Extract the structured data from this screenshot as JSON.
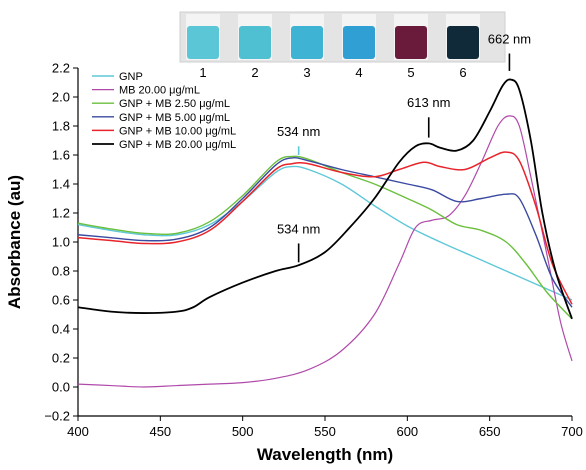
{
  "chart_data": {
    "type": "line",
    "xlabel": "Wavelength (nm)",
    "ylabel": "Absorbance (au)",
    "xlim": [
      400,
      700
    ],
    "ylim": [
      -0.2,
      2.2
    ],
    "x_ticks": [
      400,
      450,
      500,
      550,
      600,
      650,
      700
    ],
    "x_tick_labels": [
      "400",
      "450",
      "500",
      "550",
      "600",
      "650",
      "700"
    ],
    "y_ticks": [
      -0.2,
      0.0,
      0.2,
      0.4,
      0.6,
      0.8,
      1.0,
      1.2,
      1.4,
      1.6,
      1.8,
      2.0,
      2.2
    ],
    "y_tick_labels": [
      "−0.2",
      "0.0",
      "0.2",
      "0.4",
      "0.6",
      "0.8",
      "1.0",
      "1.2",
      "1.4",
      "1.6",
      "1.8",
      "2.0",
      "2.2"
    ],
    "grid": false,
    "legend_position": "top-left",
    "series": [
      {
        "name": "GNP",
        "color": "#5ec8d8",
        "width": 1.4,
        "points": [
          [
            400,
            1.12
          ],
          [
            420,
            1.08
          ],
          [
            440,
            1.05
          ],
          [
            460,
            1.05
          ],
          [
            480,
            1.12
          ],
          [
            500,
            1.28
          ],
          [
            520,
            1.48
          ],
          [
            530,
            1.52
          ],
          [
            540,
            1.5
          ],
          [
            560,
            1.4
          ],
          [
            580,
            1.25
          ],
          [
            600,
            1.11
          ],
          [
            620,
            1.0
          ],
          [
            640,
            0.9
          ],
          [
            660,
            0.8
          ],
          [
            680,
            0.7
          ],
          [
            700,
            0.6
          ]
        ]
      },
      {
        "name": "MB 20.00 μg/mL",
        "color": "#b04aaa",
        "width": 1.2,
        "points": [
          [
            400,
            0.02
          ],
          [
            420,
            0.01
          ],
          [
            440,
            0.0
          ],
          [
            460,
            0.01
          ],
          [
            480,
            0.02
          ],
          [
            500,
            0.03
          ],
          [
            520,
            0.06
          ],
          [
            540,
            0.12
          ],
          [
            560,
            0.25
          ],
          [
            580,
            0.5
          ],
          [
            595,
            0.85
          ],
          [
            605,
            1.1
          ],
          [
            615,
            1.15
          ],
          [
            625,
            1.18
          ],
          [
            635,
            1.32
          ],
          [
            645,
            1.55
          ],
          [
            655,
            1.8
          ],
          [
            662,
            1.87
          ],
          [
            668,
            1.8
          ],
          [
            675,
            1.45
          ],
          [
            685,
            0.9
          ],
          [
            693,
            0.45
          ],
          [
            700,
            0.18
          ]
        ]
      },
      {
        "name": "GNP + MB 2.50 μg/mL",
        "color": "#6abf3c",
        "width": 1.4,
        "points": [
          [
            400,
            1.13
          ],
          [
            420,
            1.09
          ],
          [
            440,
            1.06
          ],
          [
            460,
            1.06
          ],
          [
            480,
            1.14
          ],
          [
            500,
            1.32
          ],
          [
            520,
            1.55
          ],
          [
            530,
            1.59
          ],
          [
            540,
            1.57
          ],
          [
            560,
            1.48
          ],
          [
            580,
            1.4
          ],
          [
            600,
            1.3
          ],
          [
            615,
            1.22
          ],
          [
            630,
            1.12
          ],
          [
            645,
            1.08
          ],
          [
            660,
            1.0
          ],
          [
            672,
            0.85
          ],
          [
            685,
            0.65
          ],
          [
            700,
            0.47
          ]
        ]
      },
      {
        "name": "GNP + MB 5.00 μg/mL",
        "color": "#3a4aa0",
        "width": 1.4,
        "points": [
          [
            400,
            1.05
          ],
          [
            420,
            1.03
          ],
          [
            440,
            1.01
          ],
          [
            460,
            1.02
          ],
          [
            480,
            1.1
          ],
          [
            500,
            1.3
          ],
          [
            520,
            1.53
          ],
          [
            530,
            1.58
          ],
          [
            540,
            1.56
          ],
          [
            560,
            1.5
          ],
          [
            580,
            1.45
          ],
          [
            600,
            1.4
          ],
          [
            615,
            1.36
          ],
          [
            630,
            1.28
          ],
          [
            645,
            1.3
          ],
          [
            660,
            1.33
          ],
          [
            668,
            1.3
          ],
          [
            678,
            1.05
          ],
          [
            688,
            0.75
          ],
          [
            700,
            0.55
          ]
        ]
      },
      {
        "name": "GNP + MB 10.00 μg/mL",
        "color": "#e8242a",
        "width": 1.5,
        "points": [
          [
            400,
            1.03
          ],
          [
            420,
            1.01
          ],
          [
            440,
            0.99
          ],
          [
            460,
            1.0
          ],
          [
            480,
            1.08
          ],
          [
            500,
            1.28
          ],
          [
            520,
            1.5
          ],
          [
            530,
            1.54
          ],
          [
            540,
            1.54
          ],
          [
            560,
            1.48
          ],
          [
            580,
            1.45
          ],
          [
            595,
            1.5
          ],
          [
            610,
            1.55
          ],
          [
            620,
            1.52
          ],
          [
            635,
            1.5
          ],
          [
            650,
            1.58
          ],
          [
            660,
            1.62
          ],
          [
            668,
            1.56
          ],
          [
            678,
            1.25
          ],
          [
            688,
            0.85
          ],
          [
            700,
            0.57
          ]
        ]
      },
      {
        "name": "GNP + MB 20.00 μg/mL",
        "color": "#000000",
        "width": 1.8,
        "points": [
          [
            400,
            0.55
          ],
          [
            420,
            0.52
          ],
          [
            440,
            0.51
          ],
          [
            460,
            0.52
          ],
          [
            470,
            0.55
          ],
          [
            480,
            0.62
          ],
          [
            500,
            0.72
          ],
          [
            520,
            0.8
          ],
          [
            534,
            0.84
          ],
          [
            550,
            0.93
          ],
          [
            565,
            1.1
          ],
          [
            580,
            1.3
          ],
          [
            595,
            1.55
          ],
          [
            605,
            1.66
          ],
          [
            613,
            1.68
          ],
          [
            620,
            1.65
          ],
          [
            630,
            1.63
          ],
          [
            640,
            1.7
          ],
          [
            650,
            1.9
          ],
          [
            658,
            2.08
          ],
          [
            663,
            2.12
          ],
          [
            668,
            2.05
          ],
          [
            675,
            1.7
          ],
          [
            682,
            1.2
          ],
          [
            690,
            0.8
          ],
          [
            700,
            0.47
          ]
        ]
      }
    ],
    "annotations": [
      {
        "text": "534 nm",
        "x": 534,
        "y_tip": 1.6,
        "y_line_top": 1.66,
        "y_text": 1.73
      },
      {
        "text": "534 nm",
        "x": 534,
        "y_tip": 0.86,
        "y_line_top": 0.99,
        "y_text": 1.06
      },
      {
        "text": "613 nm",
        "x": 613,
        "y_tip": 1.72,
        "y_line_top": 1.86,
        "y_text": 1.93
      },
      {
        "text": "662 nm",
        "x": 662,
        "y_tip": 2.18,
        "y_line_top": 2.3,
        "y_text": 2.37
      }
    ]
  },
  "vials": {
    "labels": [
      "1",
      "2",
      "3",
      "4",
      "5",
      "6"
    ],
    "colors": [
      "#5bc7d6",
      "#4fc0d2",
      "#3fb3d4",
      "#2f9fd4",
      "#6a1a3a",
      "#102a3a"
    ]
  }
}
